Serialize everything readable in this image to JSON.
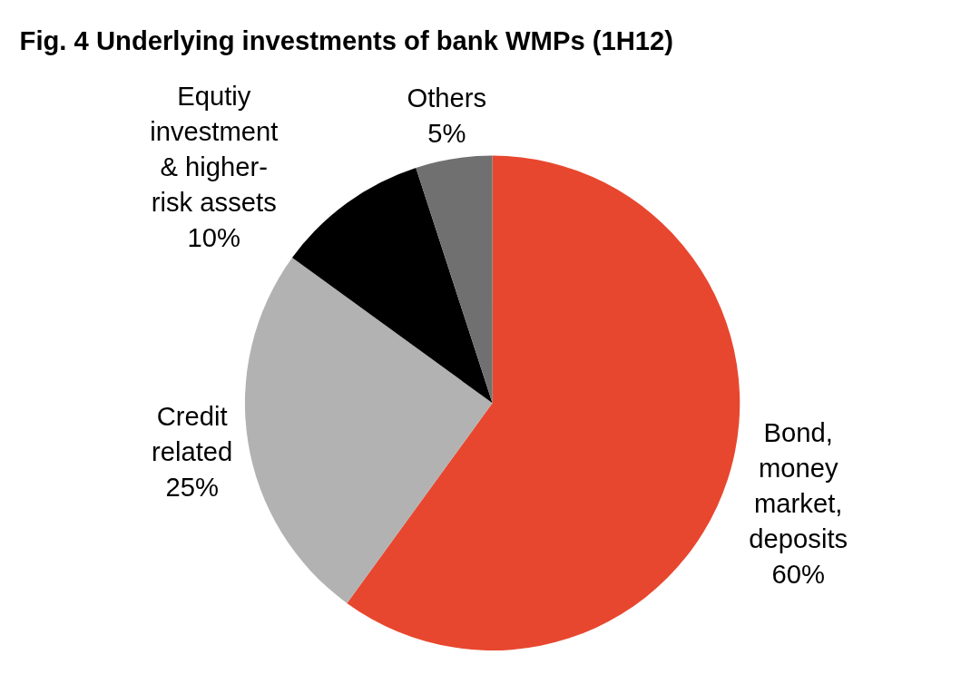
{
  "chart_data": {
    "type": "pie",
    "title": "Fig. 4 Underlying investments of bank WMPs (1H12)",
    "categories": [
      "Bond,\nmoney\nmarket,\ndeposits",
      "Credit\nrelated",
      "Equtiy\ninvestment\n& higher-\nrisk assets",
      "Others"
    ],
    "values": [
      60,
      25,
      10,
      5
    ],
    "colors": [
      "#e8472f",
      "#b2b2b2",
      "#000000",
      "#707070"
    ],
    "value_labels": [
      "60%",
      "25%",
      "10%",
      "5%"
    ]
  }
}
